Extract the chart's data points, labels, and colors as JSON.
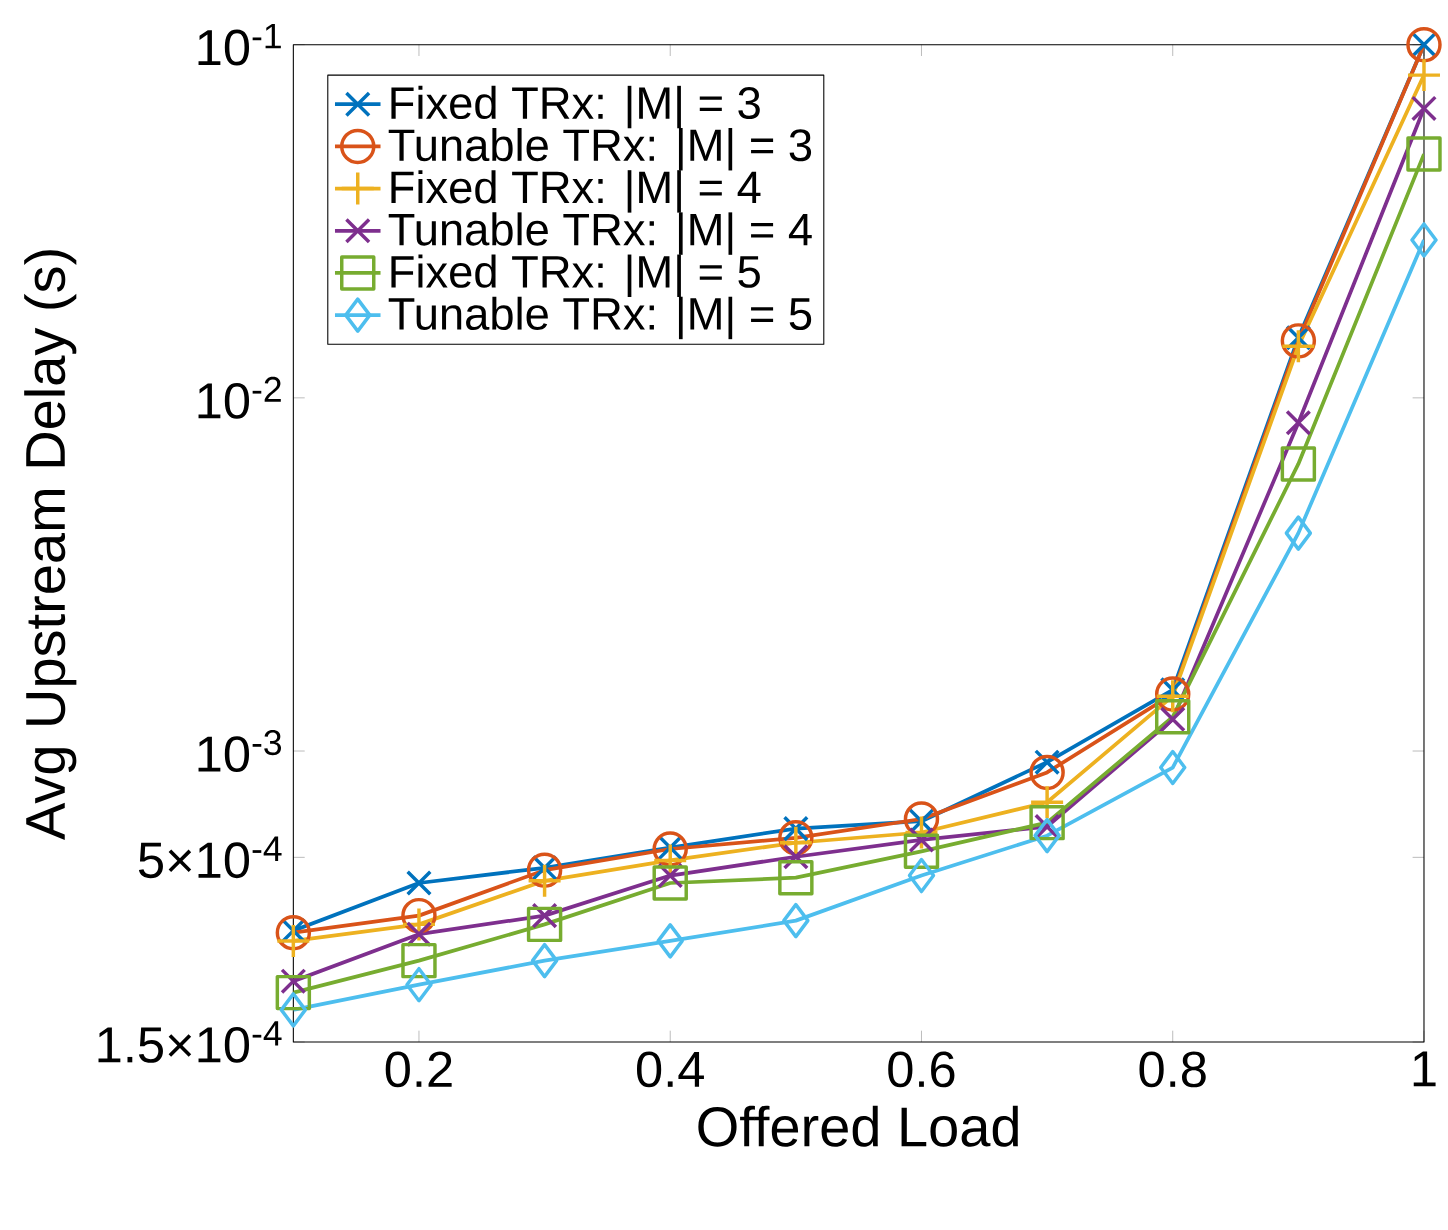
{
  "chart_data": {
    "type": "line",
    "xlabel": "Offered Load",
    "ylabel": "Avg Upstream Delay (s)",
    "x": [
      0.1,
      0.2,
      0.3,
      0.4,
      0.5,
      0.6,
      0.7,
      0.8,
      0.9,
      1.0
    ],
    "xlim": [
      0.1,
      1
    ],
    "xticks": [
      0.2,
      0.4,
      0.6,
      0.8,
      1
    ],
    "ylim": [
      0.00015,
      0.1
    ],
    "log": "y",
    "yticks": [
      {
        "value": 0.00015,
        "label": "1.5×10$^{-4}$"
      },
      {
        "value": 0.0005,
        "label": "5×10$^{-4}$"
      },
      {
        "value": 0.001,
        "label": "10$^{-3}$"
      },
      {
        "value": 0.01,
        "label": "10$^{-2}$"
      },
      {
        "value": 0.1,
        "label": "10$^{-1}$"
      }
    ],
    "legend": "top left",
    "grid": false,
    "line_style": "solid",
    "series": [
      {
        "name": "Fixed TRx: |M| = 3",
        "color": "#0072bd",
        "marker": "cross",
        "values": [
          0.00031,
          0.000423,
          0.000467,
          0.000533,
          0.000603,
          0.000633,
          0.00093,
          0.00149,
          0.0148,
          0.1
        ]
      },
      {
        "name": "Tunable TRx: |M| = 3",
        "color": "#d95319",
        "marker": "circle",
        "values": [
          0.000306,
          0.000342,
          0.00046,
          0.000528,
          0.000568,
          0.000642,
          0.00087,
          0.00145,
          0.0145,
          0.1
        ]
      },
      {
        "name": "Fixed TRx: |M| = 4",
        "color": "#edb120",
        "marker": "plus",
        "values": [
          0.00029,
          0.000323,
          0.000429,
          0.00049,
          0.00055,
          0.000588,
          0.000716,
          0.00143,
          0.014,
          0.082
        ]
      },
      {
        "name": "Tunable TRx: |M| = 4",
        "color": "#7e2f8e",
        "marker": "cross",
        "values": [
          0.000223,
          0.000303,
          0.000342,
          0.000444,
          0.000502,
          0.00056,
          0.000611,
          0.00123,
          0.0085,
          0.066
        ]
      },
      {
        "name": "Fixed TRx: |M| = 5",
        "color": "#77ac30",
        "marker": "square",
        "values": [
          0.000207,
          0.000255,
          0.000323,
          0.000423,
          0.000438,
          0.00052,
          0.000627,
          0.00125,
          0.0065,
          0.049
        ]
      },
      {
        "name": "Tunable TRx: |M| = 5",
        "color": "#4dbeee",
        "marker": "diamond",
        "values": [
          0.000185,
          0.000218,
          0.000255,
          0.00029,
          0.000331,
          0.000444,
          0.000576,
          0.000898,
          0.00414,
          0.028
        ]
      }
    ]
  }
}
